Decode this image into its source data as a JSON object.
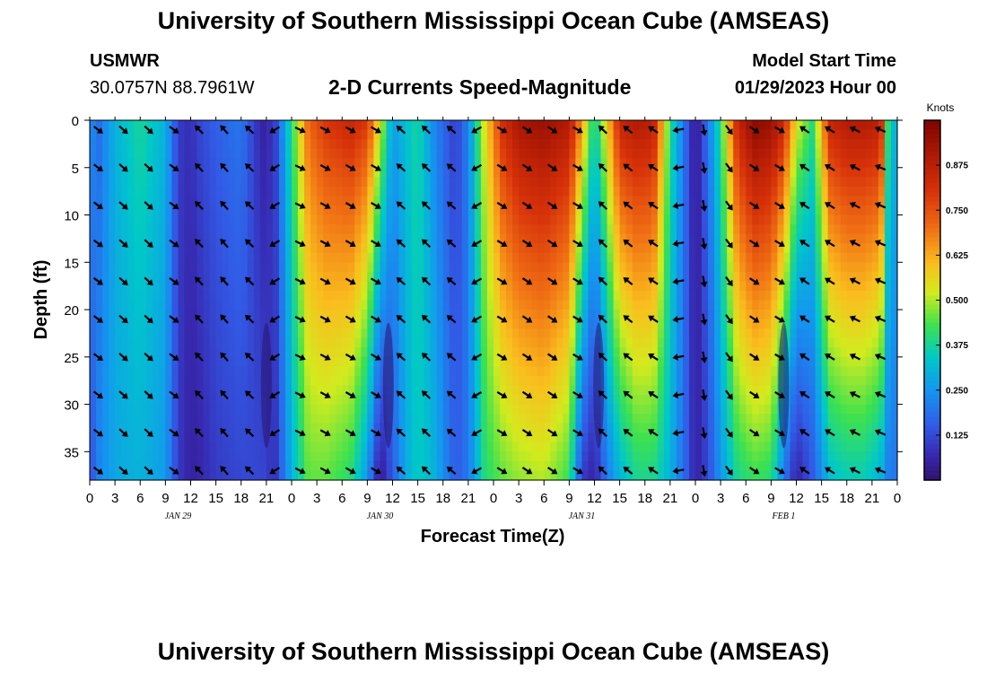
{
  "page": {
    "title_top": "University of Southern Mississippi Ocean Cube (AMSEAS)",
    "title_bottom": "University of Southern Mississippi Ocean Cube (AMSEAS)",
    "station": "USMWR",
    "coords": "30.0757N  88.7961W",
    "subtitle": "2-D Currents Speed-Magnitude",
    "model_start_label": "Model Start Time",
    "model_start_value": "01/29/2023 Hour 00"
  },
  "chart_data": {
    "type": "heatmap",
    "title": "2-D Currents Speed-Magnitude",
    "xlabel": "Forecast Time(Z)",
    "ylabel": "Depth (ft)",
    "x_tick_labels": [
      "0",
      "3",
      "6",
      "9",
      "12",
      "15",
      "18",
      "21",
      "0",
      "3",
      "6",
      "9",
      "12",
      "15",
      "18",
      "21",
      "0",
      "3",
      "6",
      "9",
      "12",
      "15",
      "18",
      "21",
      "0",
      "3",
      "6",
      "9",
      "12",
      "15",
      "18",
      "21",
      "0"
    ],
    "x_range_hours": [
      0,
      96
    ],
    "date_labels": [
      {
        "text": "JAN 29",
        "hour": 10.5
      },
      {
        "text": "JAN 30",
        "hour": 34.5
      },
      {
        "text": "JAN 31",
        "hour": 58.5
      },
      {
        "text": "FEB 1",
        "hour": 82.5
      }
    ],
    "y_tick_labels": [
      "0",
      "5",
      "10",
      "15",
      "20",
      "25",
      "30",
      "35"
    ],
    "y_ticks_ft": [
      0,
      5,
      10,
      15,
      20,
      25,
      30,
      35
    ],
    "ylim_ft": [
      0,
      38
    ],
    "y_inverted": true,
    "colorbar": {
      "title": "Knots",
      "tick_labels": [
        "0.875",
        "0.750",
        "0.625",
        "0.500",
        "0.375",
        "0.250",
        "0.125"
      ],
      "tick_values": [
        0.875,
        0.75,
        0.625,
        0.5,
        0.375,
        0.25,
        0.125
      ],
      "range": [
        0,
        1.0
      ]
    },
    "arrow_depths_ft": [
      1,
      5,
      9,
      13,
      17,
      21,
      25,
      29,
      33,
      37
    ],
    "speed_profile": {
      "hours": [
        0,
        1,
        3,
        6,
        9,
        10.5,
        12,
        13,
        15,
        18,
        20.5,
        22,
        24,
        26,
        28,
        31,
        33,
        34.5,
        36,
        37.5,
        39,
        41,
        43.5,
        45,
        47,
        49,
        51,
        54,
        57,
        58.5,
        60,
        61.5,
        63,
        65,
        67,
        69,
        71,
        72,
        73.5,
        75,
        77,
        79,
        81,
        82.5,
        84,
        86,
        88,
        90,
        92,
        94,
        95,
        96
      ],
      "surface": [
        0.25,
        0.18,
        0.3,
        0.38,
        0.3,
        0.1,
        0.08,
        0.12,
        0.16,
        0.2,
        0.05,
        0.1,
        0.4,
        0.72,
        0.8,
        0.85,
        0.8,
        0.55,
        0.26,
        0.32,
        0.38,
        0.22,
        0.1,
        0.22,
        0.55,
        0.82,
        0.92,
        0.95,
        0.9,
        0.65,
        0.35,
        0.58,
        0.86,
        0.9,
        0.88,
        0.4,
        0.15,
        0.02,
        0.2,
        0.4,
        0.85,
        0.98,
        0.95,
        0.85,
        0.55,
        0.4,
        0.85,
        0.9,
        0.9,
        0.88,
        0.35,
        0.3
      ],
      "bottom": [
        0.12,
        0.22,
        0.28,
        0.3,
        0.26,
        0.1,
        0.05,
        0.06,
        0.1,
        0.12,
        0.12,
        0.08,
        0.3,
        0.45,
        0.45,
        0.4,
        0.25,
        0.02,
        0.15,
        0.28,
        0.35,
        0.3,
        0.15,
        0.2,
        0.4,
        0.45,
        0.48,
        0.5,
        0.42,
        0.1,
        0.05,
        0.2,
        0.3,
        0.38,
        0.38,
        0.3,
        0.15,
        0.05,
        0.12,
        0.25,
        0.38,
        0.42,
        0.4,
        0.2,
        0.05,
        0.15,
        0.32,
        0.35,
        0.35,
        0.3,
        0.2,
        0.2
      ]
    },
    "arrow_direction_deg": {
      "hours": [
        0,
        6,
        10.5,
        12,
        18,
        21,
        24,
        30,
        34.5,
        36,
        42,
        45,
        48,
        54,
        58.5,
        60,
        66,
        69,
        72,
        78,
        82.5,
        84,
        90,
        93,
        96
      ],
      "degrees": [
        125,
        135,
        125,
        315,
        320,
        300,
        115,
        120,
        120,
        310,
        315,
        300,
        120,
        125,
        120,
        315,
        305,
        300,
        180,
        125,
        120,
        305,
        300,
        290,
        300
      ]
    },
    "low_speed_columns_hours": [
      21,
      35.5,
      60.5,
      82.5
    ]
  }
}
